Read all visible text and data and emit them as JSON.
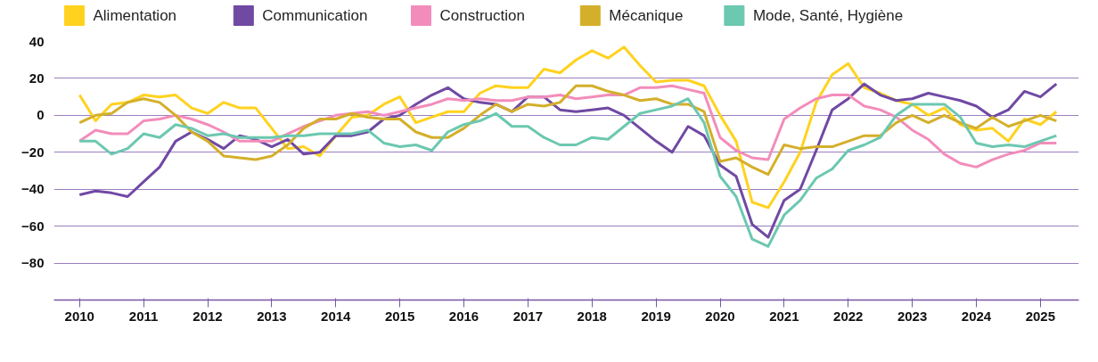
{
  "chart_data": {
    "type": "line",
    "x": [
      2010,
      2010.25,
      2010.5,
      2010.75,
      2011,
      2011.25,
      2011.5,
      2011.75,
      2012,
      2012.25,
      2012.5,
      2012.75,
      2013,
      2013.25,
      2013.5,
      2013.75,
      2014,
      2014.25,
      2014.5,
      2014.75,
      2015,
      2015.25,
      2015.5,
      2015.75,
      2016,
      2016.25,
      2016.5,
      2016.75,
      2017,
      2017.25,
      2017.5,
      2017.75,
      2018,
      2018.25,
      2018.5,
      2018.75,
      2019,
      2019.25,
      2019.5,
      2019.75,
      2020,
      2020.25,
      2020.5,
      2020.75,
      2021,
      2021.25,
      2021.5,
      2021.75,
      2022,
      2022.25,
      2022.5,
      2022.75,
      2023,
      2023.25,
      2023.5,
      2023.75,
      2024,
      2024.25,
      2024.5,
      2024.75,
      2025,
      2025.25
    ],
    "series": [
      {
        "name": "Alimentation",
        "color": "#ffd21f",
        "values": [
          11,
          -3,
          6,
          7,
          11,
          10,
          11,
          4,
          1,
          7,
          4,
          4,
          -7,
          -18,
          -17,
          -22,
          -11,
          -1,
          0,
          6,
          10,
          -4,
          -1,
          2,
          2,
          12,
          16,
          15,
          15,
          25,
          23,
          30,
          35,
          31,
          37,
          27,
          18,
          19,
          19,
          16,
          0,
          -14,
          -47,
          -50,
          -36,
          -20,
          7,
          22,
          28,
          15,
          12,
          8,
          6,
          0,
          4,
          -5,
          -8,
          -7,
          -14,
          -2,
          -5,
          2
        ]
      },
      {
        "name": "Communication",
        "color": "#7049a3",
        "values": [
          -43,
          -41,
          -42,
          -44,
          -36,
          -28,
          -14,
          -9,
          -13,
          -18,
          -11,
          -13,
          -17,
          -13,
          -21,
          -20,
          -11,
          -11,
          -9,
          -2,
          0,
          6,
          11,
          15,
          9,
          7,
          6,
          2,
          10,
          10,
          3,
          2,
          3,
          4,
          0,
          -7,
          -14,
          -20,
          -6,
          -11,
          -27,
          -33,
          -59,
          -66,
          -46,
          -40,
          -19,
          3,
          9,
          17,
          11,
          8,
          9,
          12,
          10,
          8,
          5,
          -1,
          3,
          13,
          10,
          17
        ]
      },
      {
        "name": "Construction",
        "color": "#f28dbb",
        "values": [
          -14,
          -8,
          -10,
          -10,
          -3,
          -2,
          0,
          -2,
          -5,
          -9,
          -14,
          -14,
          -14,
          -10,
          -6,
          -3,
          0,
          1,
          2,
          0,
          2,
          4,
          6,
          9,
          8,
          9,
          8,
          8,
          10,
          10,
          11,
          9,
          10,
          11,
          11,
          15,
          15,
          16,
          14,
          12,
          -12,
          -19,
          -23,
          -24,
          -2,
          4,
          9,
          11,
          11,
          5,
          3,
          -1,
          -8,
          -13,
          -21,
          -26,
          -28,
          -24,
          -21,
          -19,
          -15,
          -15
        ]
      },
      {
        "name": "Mécanique",
        "color": "#d4af2a",
        "values": [
          -4,
          0,
          1,
          7,
          9,
          7,
          0,
          -9,
          -14,
          -22,
          -23,
          -24,
          -22,
          -16,
          -7,
          -2,
          -2,
          1,
          -1,
          -2,
          -2,
          -9,
          -12,
          -12,
          -7,
          0,
          6,
          2,
          6,
          5,
          7,
          16,
          16,
          13,
          11,
          8,
          9,
          6,
          6,
          2,
          -25,
          -23,
          -28,
          -32,
          -16,
          -18,
          -17,
          -17,
          -14,
          -11,
          -11,
          -4,
          0,
          -4,
          0,
          -4,
          -7,
          -1,
          -6,
          -3,
          0,
          -3
        ]
      },
      {
        "name": "Mode, Santé, Hygiène",
        "color": "#6cc8b0",
        "values": [
          -14,
          -14,
          -21,
          -18,
          -10,
          -12,
          -5,
          -7,
          -11,
          -10,
          -12,
          -12,
          -12,
          -11,
          -11,
          -10,
          -10,
          -10,
          -8,
          -15,
          -17,
          -16,
          -19,
          -9,
          -5,
          -3,
          1,
          -6,
          -6,
          -12,
          -16,
          -16,
          -12,
          -13,
          -6,
          1,
          3,
          5,
          9,
          -4,
          -33,
          -44,
          -67,
          -71,
          -54,
          -46,
          -34,
          -29,
          -19,
          -16,
          -12,
          0,
          6,
          6,
          6,
          -1,
          -15,
          -17,
          -16,
          -17,
          -14,
          -11
        ]
      }
    ],
    "xlim": [
      2009.6,
      2025.6
    ],
    "ylim": [
      -100,
      40
    ],
    "xticks": [
      2010,
      2011,
      2012,
      2013,
      2014,
      2015,
      2016,
      2017,
      2018,
      2019,
      2020,
      2021,
      2022,
      2023,
      2024,
      2025
    ],
    "yticks": [
      -80,
      -60,
      -40,
      -20,
      0,
      20,
      40
    ],
    "grid": "y",
    "legend": "top",
    "line_style": "solid",
    "marker": "none"
  }
}
